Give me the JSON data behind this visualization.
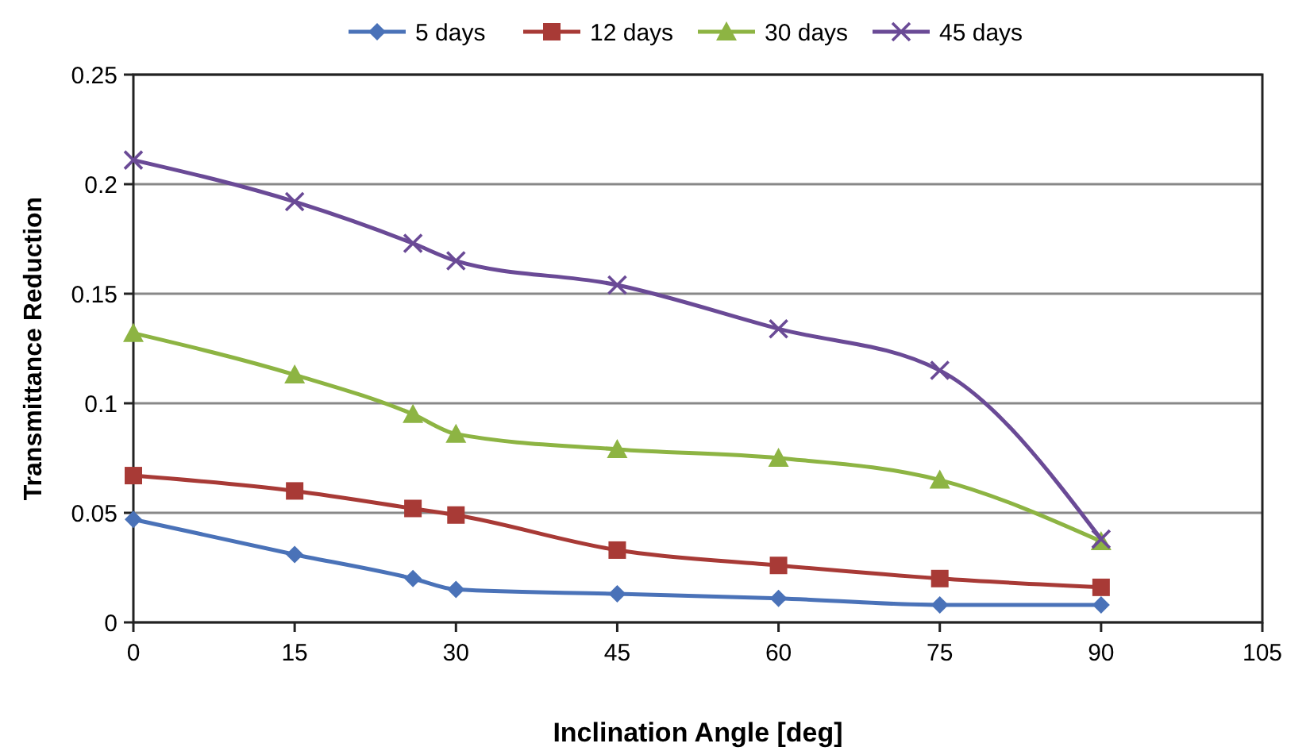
{
  "chart_data": {
    "type": "line",
    "xlabel": "Inclination Angle [deg]",
    "ylabel": "Transmittance Reduction",
    "x": [
      0,
      15,
      26,
      30,
      45,
      60,
      75,
      90
    ],
    "xlim": [
      0,
      105
    ],
    "xticks": [
      0,
      15,
      30,
      45,
      60,
      75,
      90,
      105
    ],
    "ylim": [
      0,
      0.25
    ],
    "yticks": [
      0,
      0.05,
      0.1,
      0.15,
      0.2,
      0.25
    ],
    "grid": "y",
    "legend": "top",
    "series": [
      {
        "name": "5 days",
        "color": "#4a72b8",
        "marker": "diamond",
        "values": [
          0.047,
          0.031,
          0.02,
          0.015,
          0.013,
          0.011,
          0.008,
          0.008
        ]
      },
      {
        "name": "12 days",
        "color": "#a83a36",
        "marker": "square",
        "values": [
          0.067,
          0.06,
          0.052,
          0.049,
          0.033,
          0.026,
          0.02,
          0.016
        ]
      },
      {
        "name": "30 days",
        "color": "#8db443",
        "marker": "triangle",
        "values": [
          0.132,
          0.113,
          0.095,
          0.086,
          0.079,
          0.075,
          0.065,
          0.037
        ]
      },
      {
        "name": "45 days",
        "color": "#6a4a96",
        "marker": "cross",
        "values": [
          0.211,
          0.192,
          0.173,
          0.165,
          0.154,
          0.134,
          0.115,
          0.038
        ]
      }
    ]
  }
}
